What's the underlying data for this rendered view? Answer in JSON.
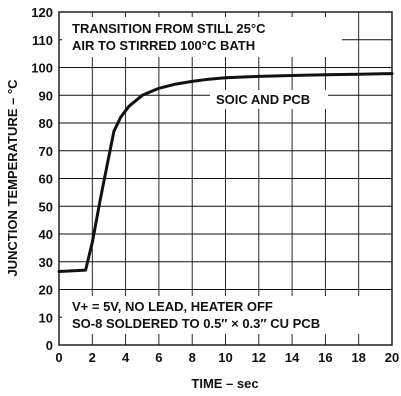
{
  "chart_data": {
    "type": "line",
    "title": "",
    "xlabel": "TIME – sec",
    "ylabel": "JUNCTION TEMPERATURE – °C",
    "xlim": [
      0,
      20
    ],
    "ylim": [
      0,
      120
    ],
    "xticks": [
      0,
      2,
      4,
      6,
      8,
      10,
      12,
      14,
      16,
      18,
      20
    ],
    "yticks": [
      0,
      10,
      20,
      30,
      40,
      50,
      60,
      70,
      80,
      90,
      100,
      110,
      120
    ],
    "grid": true,
    "series": [
      {
        "name": "SOIC AND PCB",
        "x": [
          0,
          1.6,
          2.0,
          2.5,
          3.0,
          3.3,
          3.7,
          4.2,
          5.0,
          6.0,
          7.0,
          8.0,
          9.0,
          10.0,
          12.0,
          14.0,
          16.0,
          18.0,
          20.0
        ],
        "y": [
          26.5,
          27,
          37,
          53,
          68,
          77,
          82,
          86,
          90,
          92.5,
          94,
          95,
          95.8,
          96.3,
          96.8,
          97.1,
          97.4,
          97.6,
          97.8
        ]
      }
    ],
    "annotations": {
      "top_line1": "TRANSITION FROM STILL 25°C",
      "top_line2": "AIR TO STIRRED 100°C BATH",
      "series_label": "SOIC AND PCB",
      "bottom_line1": "V+ = 5V, NO LEAD, HEATER OFF",
      "bottom_line2": "SO-8 SOLDERED TO 0.5″ × 0.3″ CU PCB"
    }
  }
}
